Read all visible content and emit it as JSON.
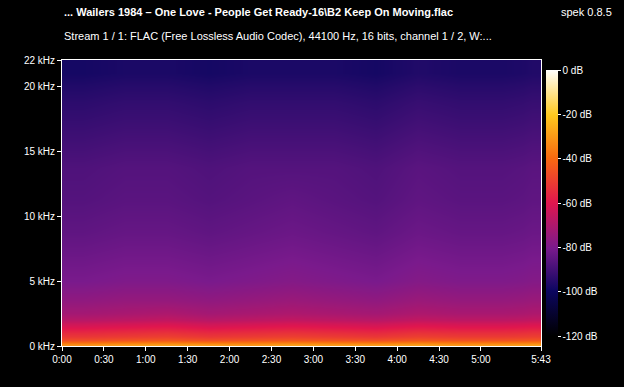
{
  "chart_data": {
    "type": "heatmap",
    "title": "... Wailers 1984 – One Love - People Get Ready-16\\B2 Keep On Moving.flac",
    "subtitle": "Stream 1 / 1: FLAC (Free Lossless Audio Codec), 44100 Hz, 16 bits, channel 1 / 2, W:...",
    "annotations": [
      "spek 0.8.5"
    ],
    "x": [
      0,
      30,
      60,
      90,
      120,
      150,
      180,
      210,
      240,
      270,
      300,
      330,
      343
    ],
    "y": [
      0,
      0.25,
      0.5,
      1,
      1.5,
      2,
      3,
      4,
      5,
      7.5,
      10,
      12.5,
      15,
      17.5,
      20,
      22
    ],
    "cells": [
      [
        -32,
        -30,
        -29,
        -30,
        -31,
        -29,
        -30,
        -30,
        -29,
        -31,
        -30,
        -29
      ],
      [
        -42,
        -40,
        -39,
        -41,
        -40,
        -39,
        -40,
        -41,
        -39,
        -40,
        -40,
        -39
      ],
      [
        -52,
        -51,
        -50,
        -52,
        -51,
        -50,
        -51,
        -52,
        -50,
        -51,
        -51,
        -50
      ],
      [
        -58,
        -57,
        -56,
        -58,
        -57,
        -56,
        -57,
        -58,
        -56,
        -57,
        -57,
        -56
      ],
      [
        -64,
        -63,
        -62,
        -64,
        -63,
        -62,
        -63,
        -64,
        -62,
        -63,
        -63,
        -62
      ],
      [
        -72,
        -71,
        -70,
        -72,
        -71,
        -70,
        -71,
        -72,
        -70,
        -71,
        -71,
        -70
      ],
      [
        -76,
        -75,
        -75,
        -76,
        -75,
        -74,
        -75,
        -76,
        -74,
        -75,
        -75,
        -74
      ],
      [
        -79,
        -78,
        -78,
        -79,
        -78,
        -77,
        -78,
        -79,
        -77,
        -78,
        -78,
        -77
      ],
      [
        -82,
        -81,
        -81,
        -82,
        -81,
        -80,
        -81,
        -82,
        -80,
        -81,
        -81,
        -80
      ],
      [
        -85,
        -84,
        -84,
        -85,
        -84,
        -83,
        -84,
        -85,
        -83,
        -84,
        -84,
        -83
      ],
      [
        -87,
        -86,
        -86,
        -87,
        -86,
        -85,
        -86,
        -87,
        -85,
        -86,
        -86,
        -85
      ],
      [
        -88,
        -87,
        -87,
        -88,
        -87,
        -87,
        -87,
        -88,
        -86,
        -87,
        -87,
        -86
      ],
      [
        -91,
        -90,
        -90,
        -91,
        -90,
        -90,
        -90,
        -91,
        -89,
        -90,
        -90,
        -89
      ],
      [
        -94,
        -93,
        -93,
        -94,
        -93,
        -93,
        -93,
        -94,
        -92,
        -93,
        -93,
        -92
      ],
      [
        -98,
        -97,
        -97,
        -98,
        -97,
        -97,
        -97,
        -98,
        -96,
        -97,
        -97,
        -96
      ]
    ],
    "xlim": [
      0,
      343
    ],
    "xticks": [
      {
        "value": 0,
        "label": "0:00"
      },
      {
        "value": 30,
        "label": "0:30"
      },
      {
        "value": 60,
        "label": "1:00"
      },
      {
        "value": 90,
        "label": "1:30"
      },
      {
        "value": 120,
        "label": "2:00"
      },
      {
        "value": 150,
        "label": "2:30"
      },
      {
        "value": 180,
        "label": "3:00"
      },
      {
        "value": 210,
        "label": "3:30"
      },
      {
        "value": 240,
        "label": "4:00"
      },
      {
        "value": 270,
        "label": "4:30"
      },
      {
        "value": 300,
        "label": "5:00"
      },
      {
        "value": 343,
        "label": "5:43"
      }
    ],
    "ylim": [
      0,
      22
    ],
    "yticks": [
      {
        "value": 0,
        "label": "0 kHz"
      },
      {
        "value": 5,
        "label": "5 kHz"
      },
      {
        "value": 10,
        "label": "10 kHz"
      },
      {
        "value": 15,
        "label": "15 kHz"
      },
      {
        "value": 20,
        "label": "20 kHz"
      },
      {
        "value": 22,
        "label": "22 kHz"
      }
    ],
    "colorbar_range": [
      -120,
      0
    ],
    "colorbar_ticks": [
      {
        "value": 0,
        "label": "0 dB"
      },
      {
        "value": -20,
        "label": "-20 dB"
      },
      {
        "value": -40,
        "label": "-40 dB"
      },
      {
        "value": -60,
        "label": "-60 dB"
      },
      {
        "value": -80,
        "label": "-80 dB"
      },
      {
        "value": -100,
        "label": "-100 dB"
      },
      {
        "value": -120,
        "label": "-120 dB"
      }
    ],
    "grid": false
  }
}
